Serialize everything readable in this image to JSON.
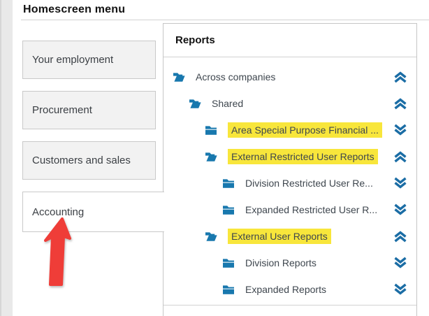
{
  "page": {
    "title": "Homescreen menu"
  },
  "sidebar": {
    "items": [
      {
        "label": "Your employment",
        "selected": false
      },
      {
        "label": "Procurement",
        "selected": false
      },
      {
        "label": "Customers and sales",
        "selected": false
      },
      {
        "label": "Accounting",
        "selected": true
      }
    ]
  },
  "reports_panel": {
    "title": "Reports",
    "tree": [
      {
        "label": "Across companies",
        "level": 0,
        "folder_icon": "open-folder-icon",
        "chevron_icon": "collapse-chevron-icon",
        "highlighted": false
      },
      {
        "label": "Shared",
        "level": 1,
        "folder_icon": "open-folder-icon",
        "chevron_icon": "collapse-chevron-icon",
        "highlighted": false
      },
      {
        "label": "Area Special Purpose Financial ...",
        "level": 2,
        "folder_icon": "closed-folder-icon",
        "chevron_icon": "expand-chevron-icon",
        "highlighted": true
      },
      {
        "label": "External Restricted User Reports",
        "level": 2,
        "folder_icon": "open-folder-icon",
        "chevron_icon": "collapse-chevron-icon",
        "highlighted": true
      },
      {
        "label": "Division Restricted User Re...",
        "level": 3,
        "folder_icon": "closed-folder-icon",
        "chevron_icon": "expand-chevron-icon",
        "highlighted": false
      },
      {
        "label": "Expanded Restricted User R...",
        "level": 3,
        "folder_icon": "closed-folder-icon",
        "chevron_icon": "expand-chevron-icon",
        "highlighted": false
      },
      {
        "label": "External User Reports",
        "level": 2,
        "folder_icon": "open-folder-icon",
        "chevron_icon": "collapse-chevron-icon",
        "highlighted": true
      },
      {
        "label": "Division Reports",
        "level": 3,
        "folder_icon": "closed-folder-icon",
        "chevron_icon": "expand-chevron-icon",
        "highlighted": false
      },
      {
        "label": "Expanded Reports",
        "level": 3,
        "folder_icon": "closed-folder-icon",
        "chevron_icon": "expand-chevron-icon",
        "highlighted": false
      }
    ]
  },
  "annotation": {
    "arrow_points_to": "Accounting"
  },
  "colors": {
    "folder_blue": "#1878ae",
    "chevron_blue": "#1b6da5",
    "highlight_yellow": "#f8e63b",
    "arrow_red": "#ef3d38",
    "button_gray": "#f2f2f2",
    "border_gray": "#c9c9c9"
  }
}
